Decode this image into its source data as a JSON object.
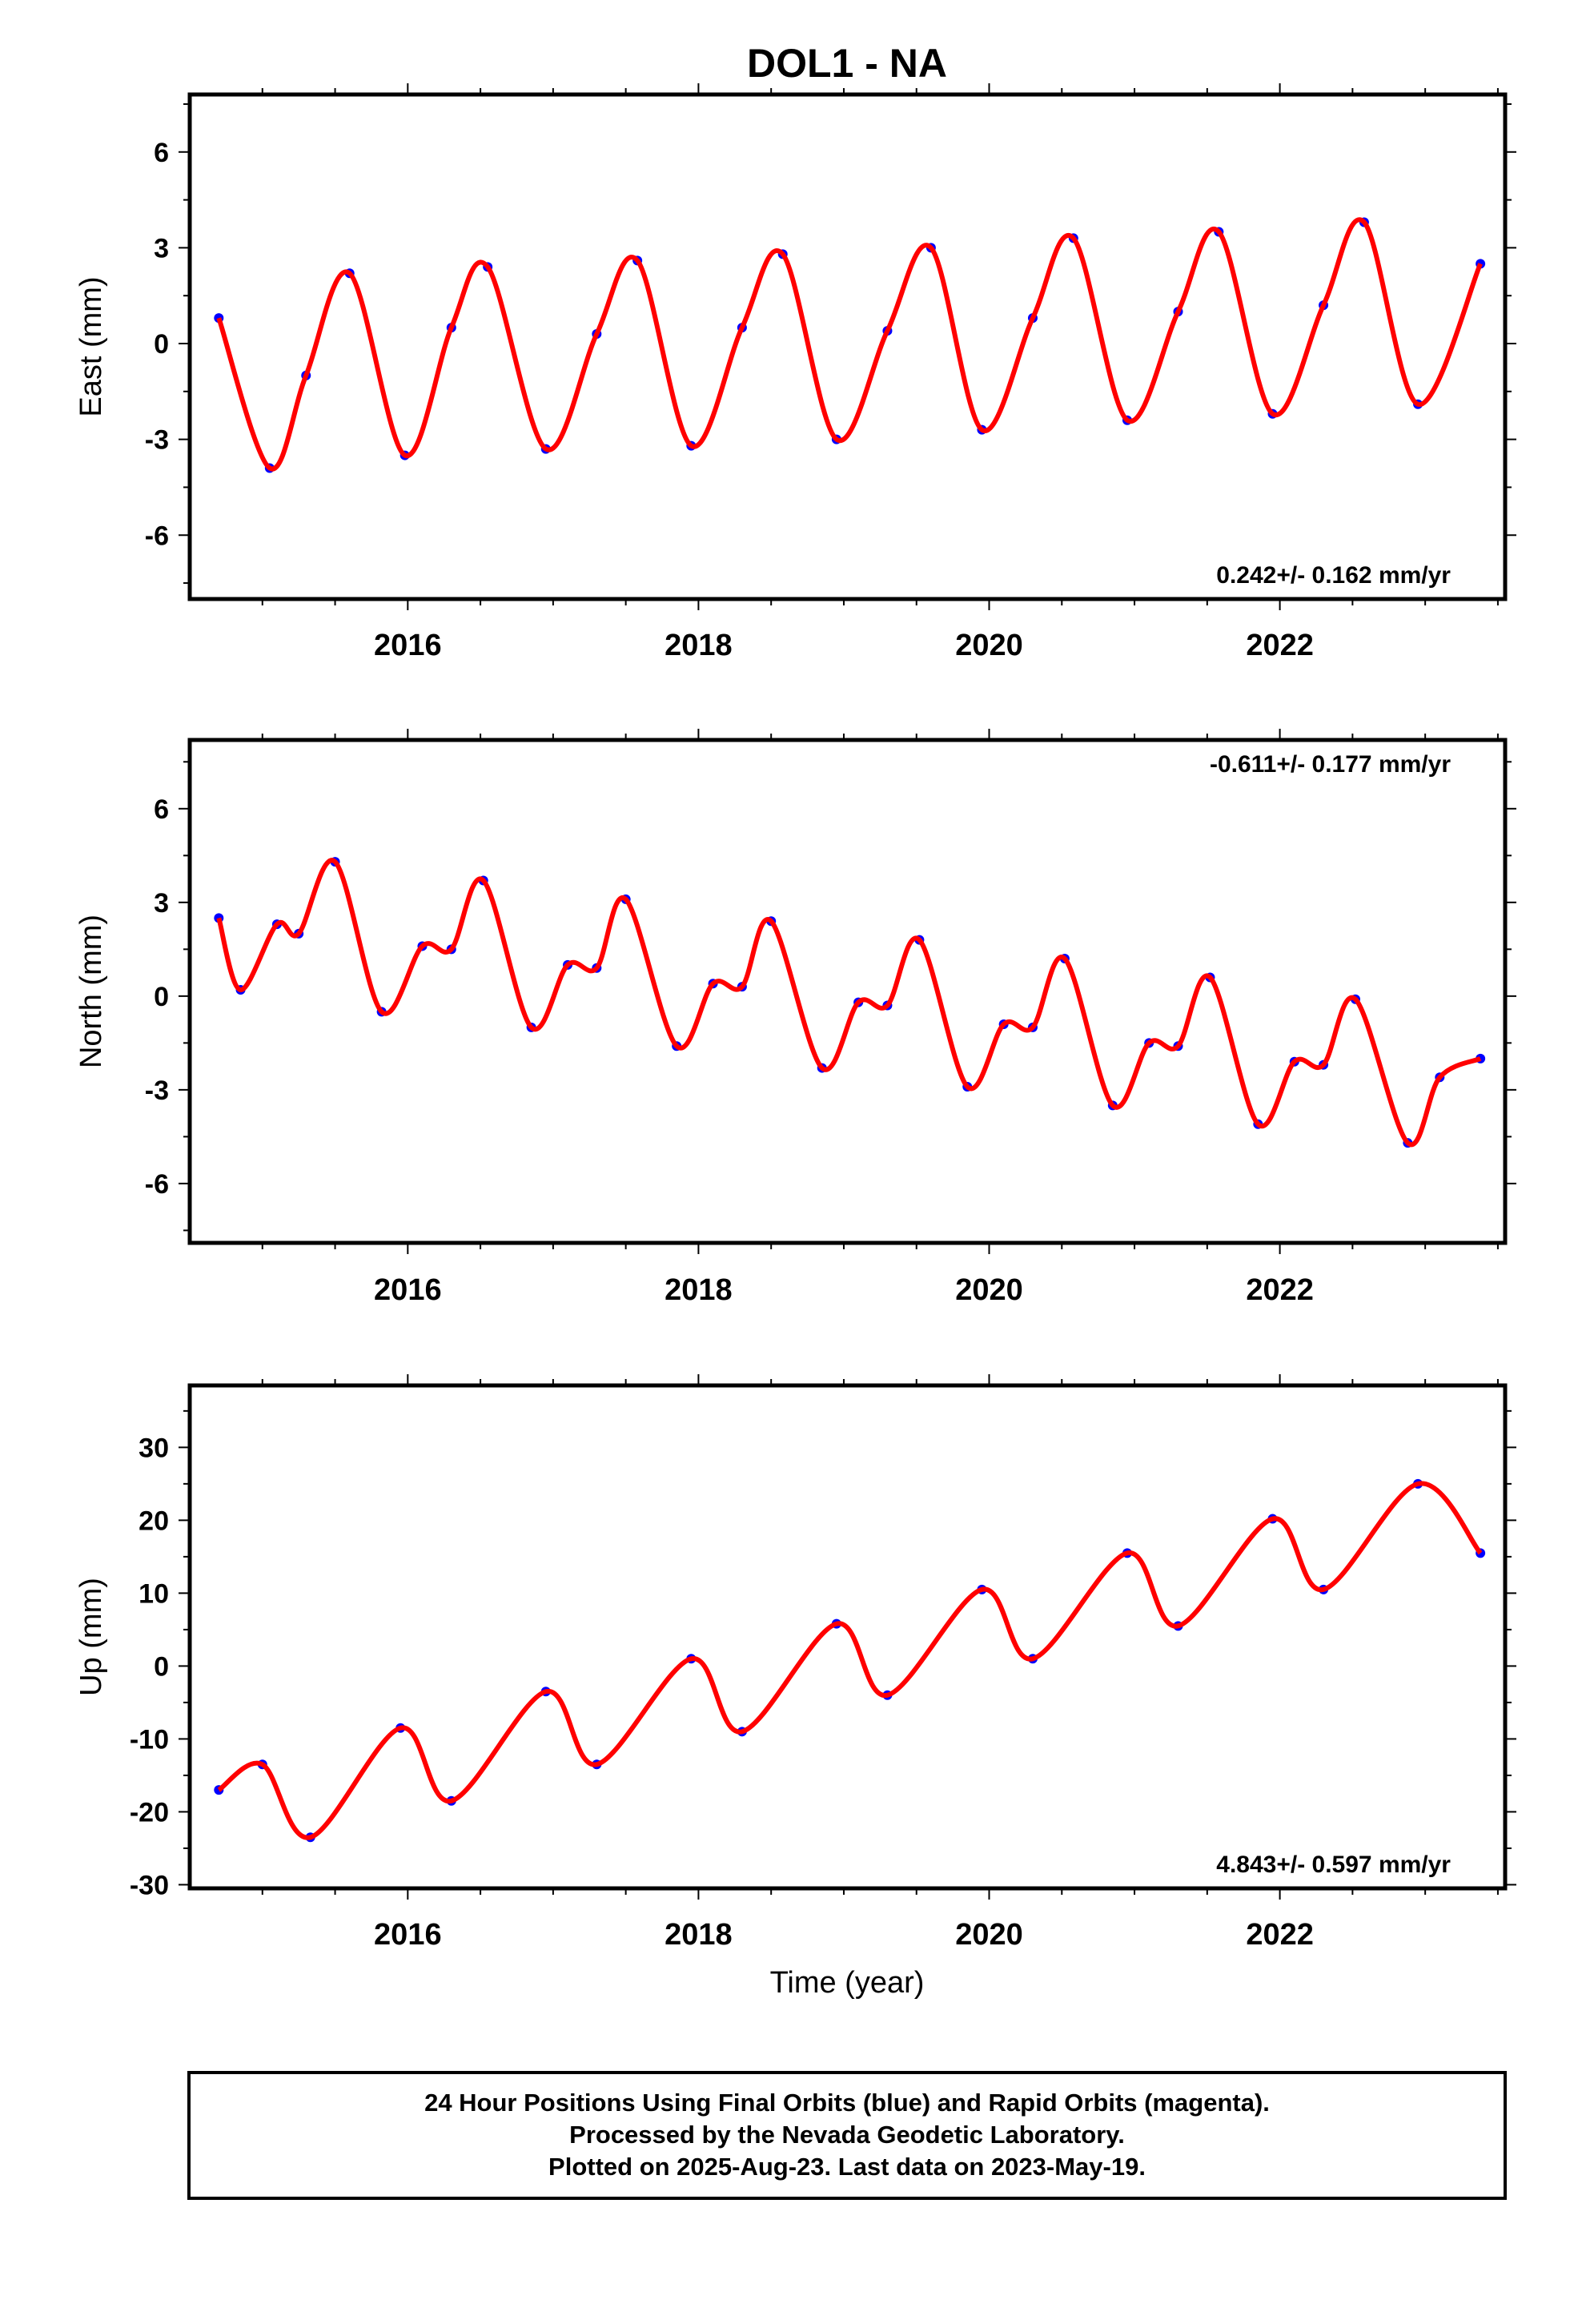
{
  "title": "DOL1 - NA",
  "x_axis_label": "Time (year)",
  "footer": {
    "line1": "24 Hour Positions Using Final Orbits (blue) and Rapid Orbits (magenta).",
    "line2": "Processed by the Nevada Geodetic Laboratory.",
    "line3": "Plotted on 2025-Aug-23. Last data on 2023-May-19."
  },
  "colors": {
    "points": "#0000ff",
    "fit": "#ff0000",
    "frame": "#000000"
  },
  "chart_data": [
    {
      "type": "scatter",
      "name": "east",
      "ylabel": "East (mm)",
      "rate_label": "0.242+/- 0.162 mm/yr",
      "rate_position": "bottom-right",
      "xlim": [
        2014.5,
        2023.55
      ],
      "ylim": [
        -8,
        7.8
      ],
      "xticks": [
        2016,
        2018,
        2020,
        2022
      ],
      "yticks": [
        -6,
        -3,
        0,
        3,
        6
      ],
      "y_tick_labels": [
        "-6",
        "-3",
        "0",
        "3",
        "6"
      ],
      "grid": false,
      "series": [
        {
          "name": "",
          "kind": "points",
          "x": [
            2014.7,
            2015.05,
            2015.3,
            2015.6,
            2015.98,
            2016.3,
            2016.55,
            2016.95,
            2017.3,
            2017.58,
            2017.95,
            2018.3,
            2018.58,
            2018.95,
            2019.3,
            2019.6,
            2019.95,
            2020.3,
            2020.58,
            2020.95,
            2021.3,
            2021.58,
            2021.95,
            2022.3,
            2022.58,
            2022.95,
            2023.38
          ],
          "y": [
            0.8,
            -3.9,
            -1.0,
            2.2,
            -3.5,
            0.5,
            2.4,
            -3.3,
            0.3,
            2.6,
            -3.2,
            0.5,
            2.8,
            -3.0,
            0.4,
            3.0,
            -2.7,
            0.8,
            3.3,
            -2.4,
            1.0,
            3.5,
            -2.2,
            1.2,
            3.8,
            -1.9,
            2.5
          ]
        },
        {
          "name": "",
          "kind": "fit",
          "x": [
            2014.7,
            2015.05,
            2015.3,
            2015.6,
            2015.98,
            2016.3,
            2016.55,
            2016.95,
            2017.3,
            2017.58,
            2017.95,
            2018.3,
            2018.58,
            2018.95,
            2019.3,
            2019.6,
            2019.95,
            2020.3,
            2020.58,
            2020.95,
            2021.3,
            2021.58,
            2021.95,
            2022.3,
            2022.58,
            2022.95,
            2023.38
          ],
          "y": [
            0.8,
            -3.9,
            -1.0,
            2.2,
            -3.5,
            0.5,
            2.4,
            -3.3,
            0.3,
            2.6,
            -3.2,
            0.5,
            2.8,
            -3.0,
            0.4,
            3.0,
            -2.7,
            0.8,
            3.3,
            -2.4,
            1.0,
            3.5,
            -2.2,
            1.2,
            3.8,
            -1.9,
            2.5
          ]
        }
      ]
    },
    {
      "type": "scatter",
      "name": "north",
      "ylabel": "North (mm)",
      "rate_label": "-0.611+/- 0.177 mm/yr",
      "rate_position": "top-right",
      "xlim": [
        2014.5,
        2023.55
      ],
      "ylim": [
        -7.9,
        8.2
      ],
      "xticks": [
        2016,
        2018,
        2020,
        2022
      ],
      "yticks": [
        -6,
        -3,
        0,
        3,
        6
      ],
      "y_tick_labels": [
        "-6",
        "-3",
        "0",
        "3",
        "6"
      ],
      "grid": false,
      "series": [
        {
          "name": "",
          "kind": "points",
          "x": [
            2014.7,
            2014.85,
            2015.1,
            2015.25,
            2015.5,
            2015.82,
            2016.1,
            2016.3,
            2016.52,
            2016.85,
            2017.1,
            2017.3,
            2017.5,
            2017.85,
            2018.1,
            2018.3,
            2018.5,
            2018.85,
            2019.1,
            2019.3,
            2019.52,
            2019.85,
            2020.1,
            2020.3,
            2020.52,
            2020.85,
            2021.1,
            2021.3,
            2021.52,
            2021.85,
            2022.1,
            2022.3,
            2022.52,
            2022.88,
            2023.1,
            2023.38
          ],
          "y": [
            2.5,
            0.2,
            2.3,
            2.0,
            4.3,
            -0.5,
            1.6,
            1.5,
            3.7,
            -1.0,
            1.0,
            0.9,
            3.1,
            -1.6,
            0.4,
            0.3,
            2.4,
            -2.3,
            -0.2,
            -0.3,
            1.8,
            -2.9,
            -0.9,
            -1.0,
            1.2,
            -3.5,
            -1.5,
            -1.6,
            0.6,
            -4.1,
            -2.1,
            -2.2,
            -0.1,
            -4.7,
            -2.6,
            -2.0
          ]
        },
        {
          "name": "",
          "kind": "fit",
          "x": [
            2014.7,
            2014.85,
            2015.1,
            2015.25,
            2015.5,
            2015.82,
            2016.1,
            2016.3,
            2016.52,
            2016.85,
            2017.1,
            2017.3,
            2017.5,
            2017.85,
            2018.1,
            2018.3,
            2018.5,
            2018.85,
            2019.1,
            2019.3,
            2019.52,
            2019.85,
            2020.1,
            2020.3,
            2020.52,
            2020.85,
            2021.1,
            2021.3,
            2021.52,
            2021.85,
            2022.1,
            2022.3,
            2022.52,
            2022.88,
            2023.1,
            2023.38
          ],
          "y": [
            2.5,
            0.2,
            2.3,
            2.0,
            4.3,
            -0.5,
            1.6,
            1.5,
            3.7,
            -1.0,
            1.0,
            0.9,
            3.1,
            -1.6,
            0.4,
            0.3,
            2.4,
            -2.3,
            -0.2,
            -0.3,
            1.8,
            -2.9,
            -0.9,
            -1.0,
            1.2,
            -3.5,
            -1.5,
            -1.6,
            0.6,
            -4.1,
            -2.1,
            -2.2,
            -0.1,
            -4.7,
            -2.6,
            -2.0
          ]
        }
      ]
    },
    {
      "type": "scatter",
      "name": "up",
      "ylabel": "Up (mm)",
      "rate_label": "4.843+/- 0.597 mm/yr",
      "rate_position": "bottom-right",
      "xlim": [
        2014.5,
        2023.55
      ],
      "ylim": [
        -30.5,
        38.5
      ],
      "xticks": [
        2016,
        2018,
        2020,
        2022
      ],
      "yticks": [
        -30,
        -20,
        -10,
        0,
        10,
        20,
        30
      ],
      "y_tick_labels": [
        "-30",
        "-20",
        "-10",
        "0",
        "10",
        "20",
        "30"
      ],
      "grid": false,
      "series": [
        {
          "name": "",
          "kind": "points",
          "x": [
            2014.7,
            2015.0,
            2015.33,
            2015.95,
            2016.3,
            2016.95,
            2017.3,
            2017.95,
            2018.3,
            2018.95,
            2019.3,
            2019.95,
            2020.3,
            2020.95,
            2021.3,
            2021.95,
            2022.3,
            2022.95,
            2023.38
          ],
          "y": [
            -17,
            -13.5,
            -23.5,
            -8.5,
            -18.5,
            -3.5,
            -13.5,
            1.0,
            -9.0,
            5.8,
            -4.0,
            10.5,
            1.0,
            15.5,
            5.5,
            20.2,
            10.5,
            25.0,
            15.5
          ]
        },
        {
          "name": "",
          "kind": "fit",
          "x": [
            2014.7,
            2015.0,
            2015.33,
            2015.95,
            2016.3,
            2016.95,
            2017.3,
            2017.95,
            2018.3,
            2018.95,
            2019.3,
            2019.95,
            2020.3,
            2020.95,
            2021.3,
            2021.95,
            2022.3,
            2022.95,
            2023.38
          ],
          "y": [
            -17,
            -13.5,
            -23.5,
            -8.5,
            -18.5,
            -3.5,
            -13.5,
            1.0,
            -9.0,
            5.8,
            -4.0,
            10.5,
            1.0,
            15.5,
            5.5,
            20.2,
            10.5,
            25.0,
            15.5
          ]
        }
      ]
    }
  ]
}
